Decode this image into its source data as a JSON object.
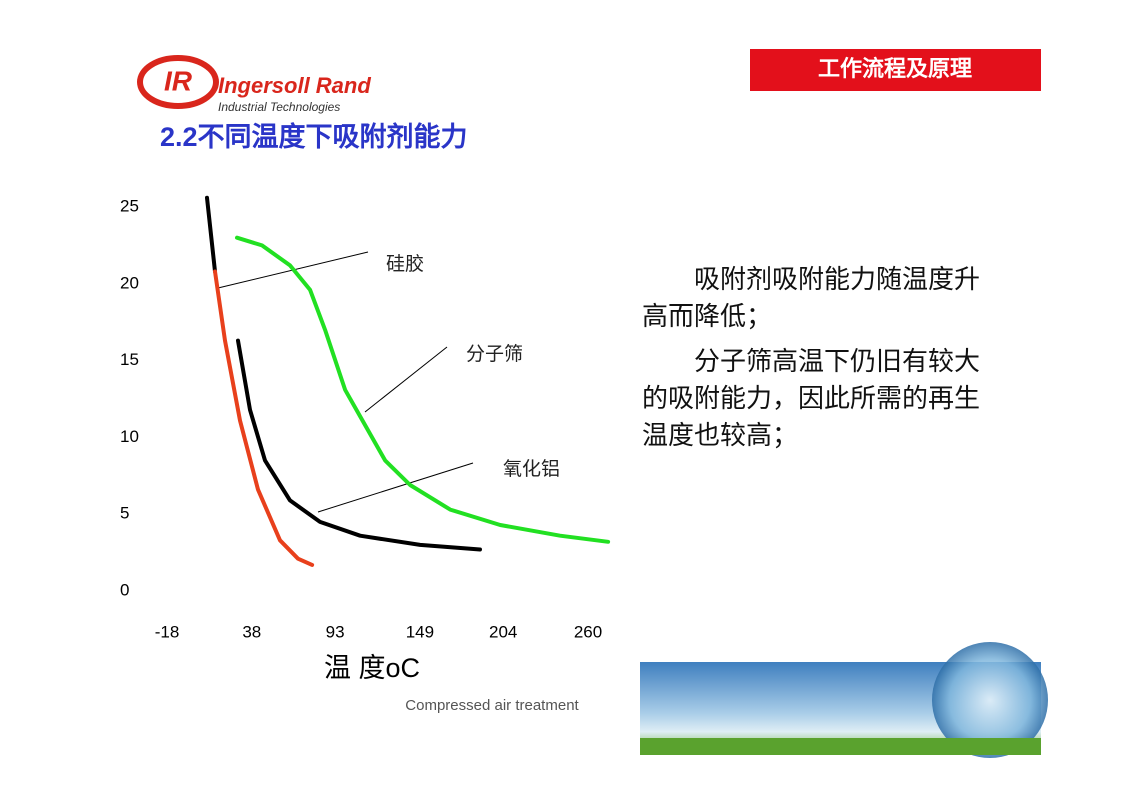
{
  "header": {
    "section": "工作流程及原理",
    "brand": "Ingersoll Rand",
    "brand_sub": "Industrial Technologies"
  },
  "text": [
    "吸附剂吸附能力随温度升高而降低；",
    "分子筛高温下仍旧有较大的吸附能力，因此所需的再生温度也较高；"
  ],
  "footer": "Compressed air treatment",
  "chart_data": {
    "type": "line",
    "title": "2.2不同温度下吸附剂能力",
    "x_label": "温 度oC",
    "xlim": [
      -18,
      260
    ],
    "ylim": [
      0,
      25
    ],
    "xticks": [
      -18,
      38,
      93,
      149,
      204,
      260
    ],
    "yticks": [
      0,
      5,
      10,
      15,
      20,
      25
    ],
    "grid": false,
    "series": [
      {
        "color": "#000000",
        "x": [
          8.4,
          13.7
        ],
        "values": [
          25.6,
          20.8
        ]
      },
      {
        "name": "硅胶",
        "color": "#e8401c",
        "x": [
          13.7,
          20.3,
          30.2,
          42.1,
          56.6,
          68.5,
          77.8
        ],
        "values": [
          20.8,
          16.3,
          11.1,
          6.6,
          3.3,
          2.1,
          1.7
        ]
      },
      {
        "name": "分子筛",
        "color": "#22e022",
        "x": [
          28.2,
          44.7,
          63.2,
          76.5,
          86.4,
          99.6,
          112.8,
          126,
          142.5,
          169,
          202,
          241.6,
          273.3
        ],
        "values": [
          23.0,
          22.5,
          21.2,
          19.6,
          17.0,
          13.1,
          10.8,
          8.5,
          6.9,
          5.3,
          4.3,
          3.6,
          3.2
        ]
      },
      {
        "name": "氧化铝",
        "color": "#000000",
        "x": [
          28.9,
          36.8,
          46.7,
          63.2,
          83,
          109.5,
          149.1,
          188.7
        ],
        "values": [
          16.3,
          11.8,
          8.5,
          5.9,
          4.5,
          3.6,
          3.0,
          2.7
        ]
      }
    ]
  }
}
